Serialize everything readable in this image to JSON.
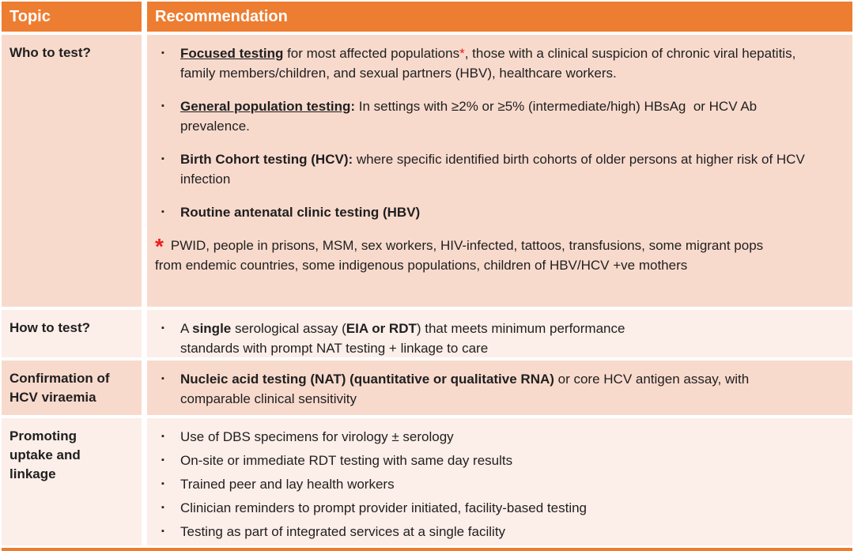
{
  "colors": {
    "header_bg": "#ED7D31",
    "header_text": "#FFFFFF",
    "row_dark": "#F8DACD",
    "row_light": "#FCEEE8",
    "text": "#1F1F1F",
    "accent_red": "#ED1C1C",
    "divider": "#FFFFFF"
  },
  "bullet_icon": "▪",
  "header": {
    "topic": "Topic",
    "recommendation": "Recommendation"
  },
  "rows": [
    {
      "id": "who-to-test",
      "topic": "Who to test?",
      "band": "dark",
      "bullets": [
        {
          "segments": [
            {
              "t": "Focused testing",
              "b": true,
              "u": true
            },
            {
              "t": " for most affected populations"
            },
            {
              "t": "*",
              "red": true
            },
            {
              "t": ", those with a clinical suspicion of chronic viral hepatitis, family members/children, and sexual partners (HBV), healthcare workers."
            }
          ]
        },
        {
          "segments": [
            {
              "t": "General population testing",
              "b": true,
              "u": true
            },
            {
              "t": ":",
              "b": true
            },
            {
              "t": " In settings with ≥2% or ≥5% (intermediate/high) HBsAg  or HCV Ab prevalence."
            }
          ]
        },
        {
          "segments": [
            {
              "t": "Birth Cohort testing (HCV):",
              "b": true
            },
            {
              "t": " where specific identified birth cohorts of older persons at higher risk of HCV infection"
            }
          ]
        },
        {
          "segments": [
            {
              "t": "Routine antenatal clinic testing (HBV)",
              "b": true
            }
          ]
        }
      ],
      "footnote": {
        "marker": "*",
        "text": "PWID, people in prisons, MSM, sex workers, HIV-infected, tattoos, transfusions, some migrant pops from endemic countries, some indigenous populations, children of HBV/HCV +ve mothers"
      }
    },
    {
      "id": "how-to-test",
      "topic": "How to test?",
      "band": "light",
      "bullets": [
        {
          "segments": [
            {
              "t": "A "
            },
            {
              "t": "single",
              "b": true
            },
            {
              "t": " serological assay ("
            },
            {
              "t": "EIA or RDT",
              "b": true
            },
            {
              "t": ") that meets minimum performance standards with prompt NAT testing + linkage to care"
            }
          ]
        }
      ]
    },
    {
      "id": "confirmation-of-hcv-viraemia",
      "topic": "Confirmation of HCV viraemia",
      "band": "dark",
      "bullets": [
        {
          "segments": [
            {
              "t": "Nucleic acid testing (NAT) (quantitative or qualitative RNA)",
              "b": true
            },
            {
              "t": " or core HCV antigen assay, with comparable clinical sensitivity"
            }
          ]
        }
      ]
    },
    {
      "id": "promoting-uptake-and-linkage",
      "topic": "Promoting uptake and linkage",
      "band": "light",
      "bullets": [
        {
          "segments": [
            {
              "t": "Use of DBS specimens for virology ± serology"
            }
          ]
        },
        {
          "segments": [
            {
              "t": "On-site or immediate RDT testing with same day results"
            }
          ]
        },
        {
          "segments": [
            {
              "t": "Trained peer and lay health workers"
            }
          ]
        },
        {
          "segments": [
            {
              "t": "Clinician reminders to prompt provider initiated, facility-based testing"
            }
          ]
        },
        {
          "segments": [
            {
              "t": "Testing as part of integrated services at a single facility"
            }
          ]
        }
      ]
    }
  ]
}
